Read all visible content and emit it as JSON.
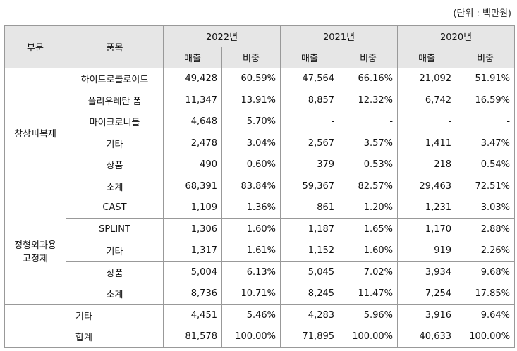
{
  "header": {
    "unit": "(단위 : 백만원)"
  },
  "table": {
    "head": {
      "segment": "부문",
      "item": "품목",
      "years": [
        "2022년",
        "2021년",
        "2020년"
      ],
      "measures": [
        "매출",
        "비중",
        "매출",
        "비중",
        "매출",
        "비중"
      ]
    },
    "groups": [
      {
        "segment": [
          "창상피복재"
        ],
        "rows": [
          {
            "item": "하이드로콜로이드",
            "cells": [
              "49,428",
              "60.59%",
              "47,564",
              "66.16%",
              "21,092",
              "51.91%"
            ]
          },
          {
            "item": "폴리우레탄 폼",
            "cells": [
              "11,347",
              "13.91%",
              "8,857",
              "12.32%",
              "6,742",
              "16.59%"
            ]
          },
          {
            "item": "마이크로니들",
            "cells": [
              "4,648",
              "5.70%",
              "-",
              "-",
              "-",
              "-"
            ]
          },
          {
            "item": "기타",
            "cells": [
              "2,478",
              "3.04%",
              "2,567",
              "3.57%",
              "1,411",
              "3.47%"
            ]
          },
          {
            "item": "상품",
            "cells": [
              "490",
              "0.60%",
              "379",
              "0.53%",
              "218",
              "0.54%"
            ]
          },
          {
            "item": "소계",
            "cells": [
              "68,391",
              "83.84%",
              "59,367",
              "82.57%",
              "29,463",
              "72.51%"
            ]
          }
        ]
      },
      {
        "segment": [
          "정형외과용",
          "고정제"
        ],
        "rows": [
          {
            "item": "CAST",
            "cells": [
              "1,109",
              "1.36%",
              "861",
              "1.20%",
              "1,231",
              "3.03%"
            ]
          },
          {
            "item": "SPLINT",
            "cells": [
              "1,306",
              "1.60%",
              "1,187",
              "1.65%",
              "1,170",
              "2.88%"
            ]
          },
          {
            "item": "기타",
            "cells": [
              "1,317",
              "1.61%",
              "1,152",
              "1.60%",
              "919",
              "2.26%"
            ]
          },
          {
            "item": "상품",
            "cells": [
              "5,004",
              "6.13%",
              "5,045",
              "7.02%",
              "3,934",
              "9.68%"
            ]
          },
          {
            "item": "소계",
            "cells": [
              "8,736",
              "10.71%",
              "8,245",
              "11.47%",
              "7,254",
              "17.85%"
            ]
          }
        ]
      }
    ],
    "totals": [
      {
        "item": "기타",
        "cells": [
          "4,451",
          "5.46%",
          "4,283",
          "5.96%",
          "3,916",
          "9.64%"
        ]
      },
      {
        "item": "합계",
        "cells": [
          "81,578",
          "100.00%",
          "71,895",
          "100.00%",
          "40,633",
          "100.00%"
        ]
      }
    ]
  }
}
